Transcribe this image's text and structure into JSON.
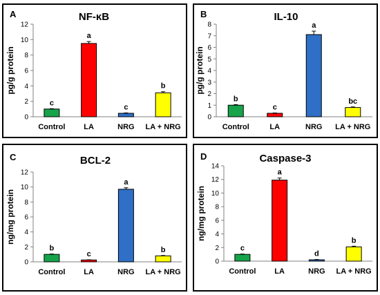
{
  "chart_data": [
    {
      "type": "bar",
      "panel_letter": "A",
      "title": "NF-κB",
      "ylabel": "pg/g protein",
      "categories": [
        "Control",
        "LA",
        "NRG",
        "LA + NRG"
      ],
      "values": [
        1.0,
        9.5,
        0.45,
        3.1
      ],
      "errors": [
        0.05,
        0.25,
        0.05,
        0.15
      ],
      "letters": [
        "c",
        "a",
        "c",
        "b"
      ],
      "ylim": [
        0,
        12
      ],
      "yticks": [
        "0",
        "2",
        "4",
        "6",
        "8",
        "10",
        "12"
      ],
      "colors": [
        "#16a34a",
        "#ff0000",
        "#2f6fc6",
        "#ffff00"
      ]
    },
    {
      "type": "bar",
      "panel_letter": "B",
      "title": "IL-10",
      "ylabel": "pg/g protein",
      "categories": [
        "Control",
        "LA",
        "NRG",
        "LA + NRG"
      ],
      "values": [
        1.0,
        0.3,
        7.1,
        0.8
      ],
      "errors": [
        0.05,
        0.03,
        0.3,
        0.05
      ],
      "letters": [
        "b",
        "c",
        "a",
        "bc"
      ],
      "ylim": [
        0,
        8
      ],
      "yticks": [
        "0",
        "1",
        "2",
        "3",
        "4",
        "5",
        "6",
        "7",
        "8"
      ],
      "colors": [
        "#16a34a",
        "#ff0000",
        "#2f6fc6",
        "#ffff00"
      ]
    },
    {
      "type": "bar",
      "panel_letter": "C",
      "title": "BCL-2",
      "ylabel": "ng/mg protein",
      "categories": [
        "Control",
        "LA",
        "NRG",
        "LA + NRG"
      ],
      "values": [
        1.0,
        0.25,
        9.7,
        0.8
      ],
      "errors": [
        0.05,
        0.03,
        0.2,
        0.05
      ],
      "letters": [
        "b",
        "c",
        "a",
        "b"
      ],
      "ylim": [
        0,
        12
      ],
      "yticks": [
        "0",
        "2",
        "4",
        "6",
        "8",
        "10",
        "12"
      ],
      "colors": [
        "#16a34a",
        "#ff0000",
        "#2f6fc6",
        "#ffff00"
      ]
    },
    {
      "type": "bar",
      "panel_letter": "D",
      "title": "Caspase-3",
      "ylabel": "ng/mg protein",
      "categories": [
        "Control",
        "LA",
        "NRG",
        "LA + NRG"
      ],
      "values": [
        1.0,
        11.9,
        0.2,
        2.1
      ],
      "errors": [
        0.05,
        0.3,
        0.05,
        0.1
      ],
      "letters": [
        "c",
        "a",
        "d",
        "b"
      ],
      "ylim": [
        0,
        14
      ],
      "yticks": [
        "0",
        "2",
        "4",
        "6",
        "8",
        "10",
        "12",
        "14"
      ],
      "colors": [
        "#16a34a",
        "#ff0000",
        "#2f6fc6",
        "#ffff00"
      ]
    }
  ]
}
